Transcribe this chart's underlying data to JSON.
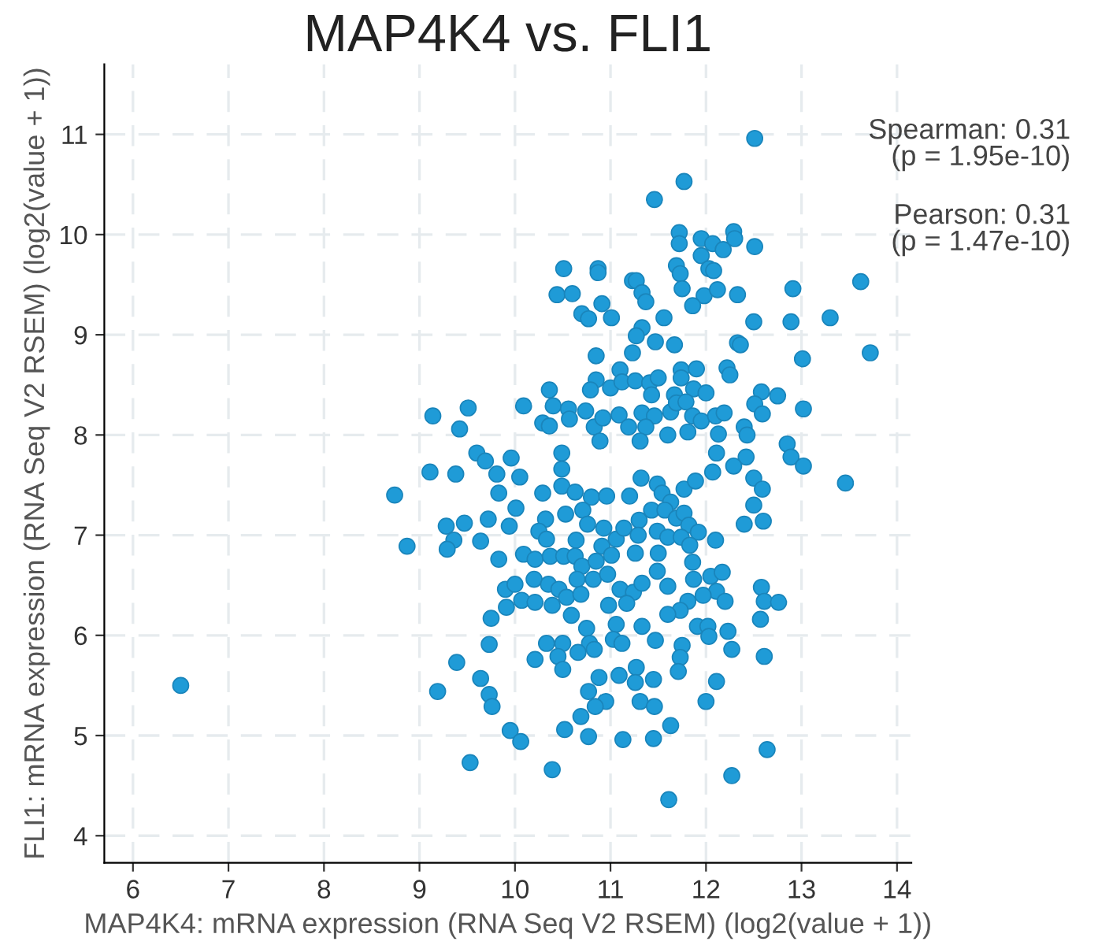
{
  "chart_data": {
    "type": "scatter",
    "title": "MAP4K4 vs. FLI1",
    "xlabel": "MAP4K4: mRNA expression (RNA Seq V2 RSEM) (log2(value + 1))",
    "ylabel": "FLI1: mRNA expression (RNA Seq V2 RSEM) (log2(value + 1))",
    "annotations": [
      "Spearman: 0.31\n(p = 1.95e-10)",
      "Pearson: 0.31\n(p = 1.47e-10)"
    ],
    "xlim": [
      5.7,
      14.15
    ],
    "ylim": [
      3.73,
      11.7
    ],
    "xticks": [
      6,
      7,
      8,
      9,
      10,
      11,
      12,
      13,
      14
    ],
    "yticks": [
      4,
      5,
      6,
      7,
      8,
      9,
      10,
      11
    ],
    "grid": true,
    "marker": "circle",
    "legend": false,
    "series": [
      {
        "color": "#1f9bd7",
        "x": [
          12.51,
          11.77,
          11.46,
          11.72,
          11.72,
          11.95,
          11.95,
          12.07,
          12.18,
          12.29,
          12.3,
          12.51,
          11.69,
          11.73,
          12.03,
          12.08,
          10.51,
          10.87,
          10.87,
          10.44,
          10.6,
          11.23,
          11.27,
          11.33,
          11.37,
          11.75,
          11.98,
          12.12,
          12.33,
          12.91,
          11.86,
          10.91,
          10.7,
          10.77,
          11.01,
          11.56,
          12.5,
          12.89,
          11.33,
          11.27,
          11.47,
          11.67,
          12.33,
          12.36,
          10.85,
          11.23,
          13.01,
          11.1,
          11.74,
          11.9,
          12.22,
          12.25,
          10.85,
          11.0,
          11.12,
          11.26,
          11.41,
          11.5,
          11.74,
          10.36,
          10.79,
          11.43,
          11.67,
          11.87,
          12.0,
          12.58,
          12.75,
          12.51,
          12.59,
          13.02,
          9.14,
          9.51,
          9.42,
          10.09,
          10.4,
          10.56,
          10.57,
          10.74,
          10.29,
          10.36,
          10.83,
          10.92,
          11.09,
          11.33,
          11.46,
          11.63,
          11.69,
          11.79,
          11.86,
          11.95,
          12.1,
          12.19,
          12.4,
          12.43,
          12.85,
          11.19,
          11.37,
          11.6,
          11.81,
          12.13,
          10.89,
          11.31,
          9.6,
          9.69,
          9.96,
          10.49,
          9.11,
          9.38,
          9.81,
          12.11,
          12.42,
          12.89,
          13.02,
          10.05,
          9.83,
          10.29,
          10.49,
          10.49,
          10.63,
          10.8,
          10.96,
          11.2,
          11.32,
          11.49,
          11.54,
          11.63,
          11.77,
          11.89,
          12.07,
          12.29,
          12.5,
          12.59,
          12.5,
          12.6,
          12.4,
          10.01,
          9.28,
          9.47,
          9.72,
          9.94,
          9.36,
          9.29,
          9.64,
          10.32,
          10.25,
          10.33,
          10.53,
          10.71,
          10.76,
          10.64,
          10.93,
          11.06,
          11.14,
          11.3,
          11.29,
          11.43,
          11.57,
          11.69,
          11.77,
          11.82,
          11.49,
          11.6,
          11.74,
          11.92,
          12.1,
          11.83,
          11.5,
          11.26,
          10.91,
          11.01,
          9.83,
          10.09,
          10.21,
          10.37,
          10.51,
          10.63,
          10.7,
          10.85,
          10.82,
          10.97,
          10.65,
          10.2,
          9.9,
          10.0,
          10.35,
          10.46,
          10.54,
          10.69,
          11.1,
          11.24,
          11.33,
          11.49,
          11.6,
          11.86,
          11.87,
          12.05,
          12.17,
          12.11,
          11.97,
          11.81,
          11.73,
          11.6,
          12.2,
          12.58,
          12.61,
          12.76,
          12.57,
          9.91,
          10.07,
          10.21,
          10.39,
          9.75,
          10.59,
          10.98,
          11.17,
          11.06,
          11.33,
          10.75,
          10.33,
          10.5,
          10.78,
          11.03,
          11.12,
          10.83,
          11.47,
          11.91,
          12.02,
          12.03,
          12.23,
          12.27,
          12.61,
          11.75,
          11.73,
          11.71,
          9.73,
          10.21,
          10.45,
          10.66,
          10.5,
          9.39,
          9.64,
          9.19,
          9.73,
          9.76,
          10.88,
          11.09,
          11.27,
          11.26,
          11.45,
          10.77,
          10.95,
          10.84,
          11.31,
          11.46,
          12.11,
          12.0,
          10.69,
          11.63,
          9.95,
          10.06,
          10.52,
          10.77,
          11.13,
          11.45,
          12.64,
          9.53,
          10.39,
          12.27,
          11.61,
          6.5,
          8.74,
          8.87,
          13.46,
          13.62,
          13.72,
          13.3
        ],
        "values": [
          10.96,
          10.53,
          10.35,
          10.02,
          9.91,
          9.96,
          9.79,
          9.91,
          9.85,
          10.03,
          9.96,
          9.88,
          9.69,
          9.61,
          9.66,
          9.64,
          9.66,
          9.66,
          9.62,
          9.4,
          9.41,
          9.54,
          9.54,
          9.42,
          9.33,
          9.46,
          9.39,
          9.45,
          9.4,
          9.46,
          9.29,
          9.31,
          9.21,
          9.16,
          9.17,
          9.17,
          9.13,
          9.13,
          9.07,
          8.99,
          8.93,
          8.9,
          8.92,
          8.9,
          8.79,
          8.82,
          8.76,
          8.65,
          8.65,
          8.66,
          8.67,
          8.6,
          8.55,
          8.47,
          8.53,
          8.54,
          8.52,
          8.57,
          8.57,
          8.45,
          8.45,
          8.4,
          8.4,
          8.46,
          8.42,
          8.43,
          8.39,
          8.31,
          8.21,
          8.26,
          8.19,
          8.27,
          8.06,
          8.29,
          8.29,
          8.26,
          8.16,
          8.24,
          8.12,
          8.09,
          8.08,
          8.17,
          8.2,
          8.22,
          8.19,
          8.23,
          8.32,
          8.33,
          8.19,
          8.14,
          8.19,
          8.22,
          8.08,
          8.0,
          7.91,
          8.08,
          8.08,
          8.0,
          8.03,
          8.01,
          7.94,
          7.94,
          7.82,
          7.74,
          7.77,
          7.82,
          7.63,
          7.61,
          7.61,
          7.82,
          7.78,
          7.78,
          7.69,
          7.58,
          7.42,
          7.42,
          7.66,
          7.49,
          7.43,
          7.38,
          7.39,
          7.39,
          7.57,
          7.51,
          7.42,
          7.33,
          7.46,
          7.54,
          7.63,
          7.69,
          7.57,
          7.46,
          7.3,
          7.14,
          7.11,
          7.27,
          7.09,
          7.12,
          7.16,
          7.09,
          6.95,
          6.86,
          6.94,
          7.16,
          7.04,
          6.96,
          7.21,
          7.25,
          7.11,
          6.95,
          7.07,
          6.96,
          7.07,
          7.15,
          7.0,
          7.25,
          7.25,
          7.17,
          7.22,
          7.1,
          7.04,
          6.98,
          6.98,
          7.03,
          6.95,
          6.9,
          6.82,
          6.82,
          6.89,
          6.8,
          6.76,
          6.81,
          6.76,
          6.79,
          6.79,
          6.79,
          6.69,
          6.74,
          6.56,
          6.61,
          6.56,
          6.56,
          6.46,
          6.51,
          6.51,
          6.46,
          6.38,
          6.41,
          6.46,
          6.43,
          6.52,
          6.64,
          6.49,
          6.73,
          6.56,
          6.59,
          6.63,
          6.44,
          6.4,
          6.34,
          6.25,
          6.21,
          6.34,
          6.48,
          6.34,
          6.33,
          6.16,
          6.28,
          6.35,
          6.33,
          6.3,
          6.17,
          6.2,
          6.3,
          6.32,
          6.11,
          6.09,
          6.07,
          5.92,
          5.92,
          5.92,
          5.96,
          5.92,
          5.86,
          5.95,
          6.09,
          6.09,
          5.99,
          6.04,
          5.86,
          5.79,
          5.9,
          5.78,
          5.64,
          5.91,
          5.76,
          5.79,
          5.83,
          5.66,
          5.73,
          5.57,
          5.44,
          5.41,
          5.29,
          5.58,
          5.6,
          5.68,
          5.53,
          5.56,
          5.44,
          5.34,
          5.29,
          5.34,
          5.29,
          5.54,
          5.34,
          5.19,
          5.1,
          5.05,
          4.94,
          5.06,
          4.99,
          4.96,
          4.97,
          4.86,
          4.73,
          4.66,
          4.6,
          4.36,
          5.5,
          7.4,
          6.89,
          7.52,
          9.53,
          8.82,
          9.17
        ]
      }
    ]
  }
}
